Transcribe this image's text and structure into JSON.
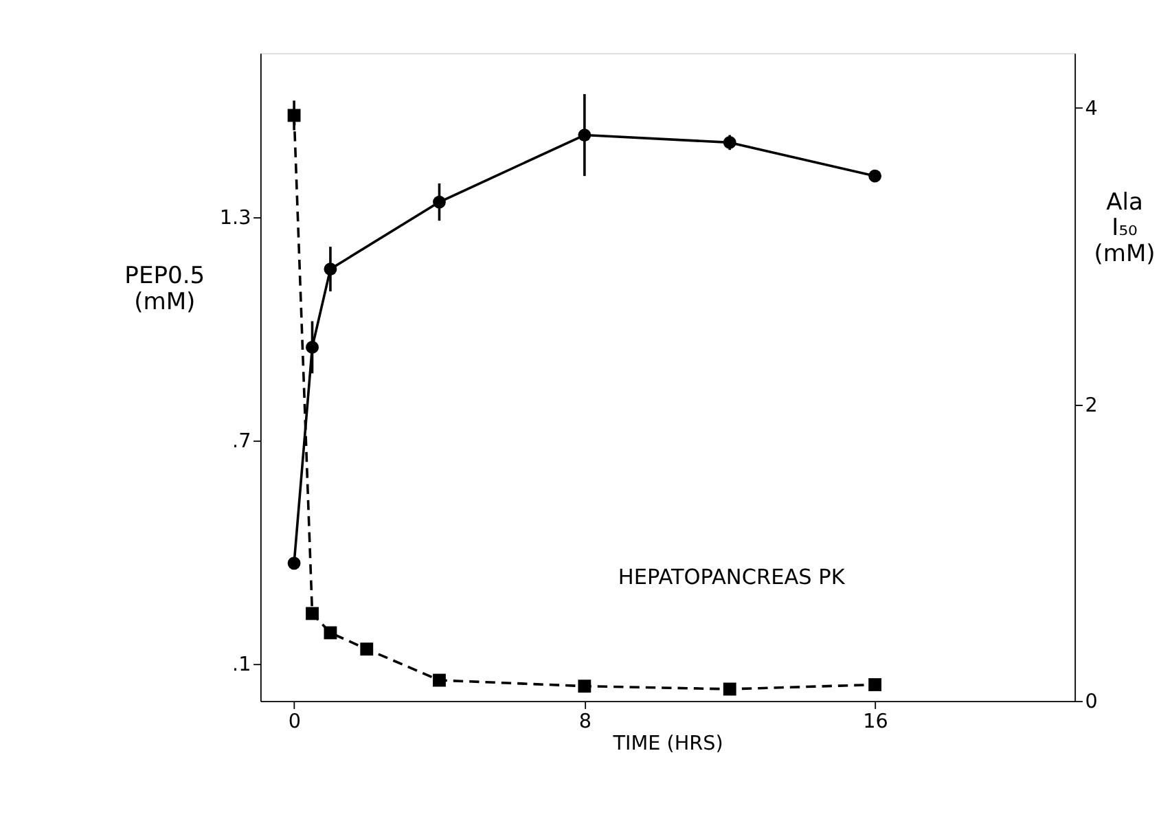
{
  "chart_data": {
    "type": "line",
    "xlabel": "TIME (HRS)",
    "ylabel": "PEP0.5 (mM)",
    "y2label": "Ala I₅₀ (mM)",
    "annotations": [
      "HEPATOPANCREAS PK"
    ],
    "xlim": [
      -0.93,
      21.5
    ],
    "xticks": [
      0,
      8,
      16
    ],
    "ylim": [
      0,
      1.74
    ],
    "yticks": [
      {
        "value": 0.1,
        "label": ".1"
      },
      {
        "value": 0.7,
        "label": ".7"
      },
      1.3
    ],
    "y2lim": [
      0,
      4.37
    ],
    "y2ticks": [
      0,
      2,
      4
    ],
    "grid": false,
    "series": [
      {
        "color": "#000000",
        "marker": "circle",
        "line_style": "solid",
        "x": [
          0,
          0.5,
          1,
          4,
          8,
          12,
          16
        ],
        "values": [
          0.37,
          0.95,
          1.16,
          1.34,
          1.52,
          1.5,
          1.41
        ],
        "errors": [
          null,
          0.07,
          0.06,
          0.05,
          0.11,
          0.02,
          0.015
        ]
      },
      {
        "color": "#000000",
        "marker": "square",
        "line_style": "dashed",
        "axis": "y2",
        "x": [
          0,
          0.5,
          1,
          2,
          4,
          8,
          12,
          16
        ],
        "values": [
          3.95,
          0.59,
          0.46,
          0.35,
          0.14,
          0.1,
          0.08,
          0.11
        ],
        "errors": [
          0.1,
          null,
          null,
          null,
          null,
          null,
          null,
          null
        ]
      }
    ]
  }
}
